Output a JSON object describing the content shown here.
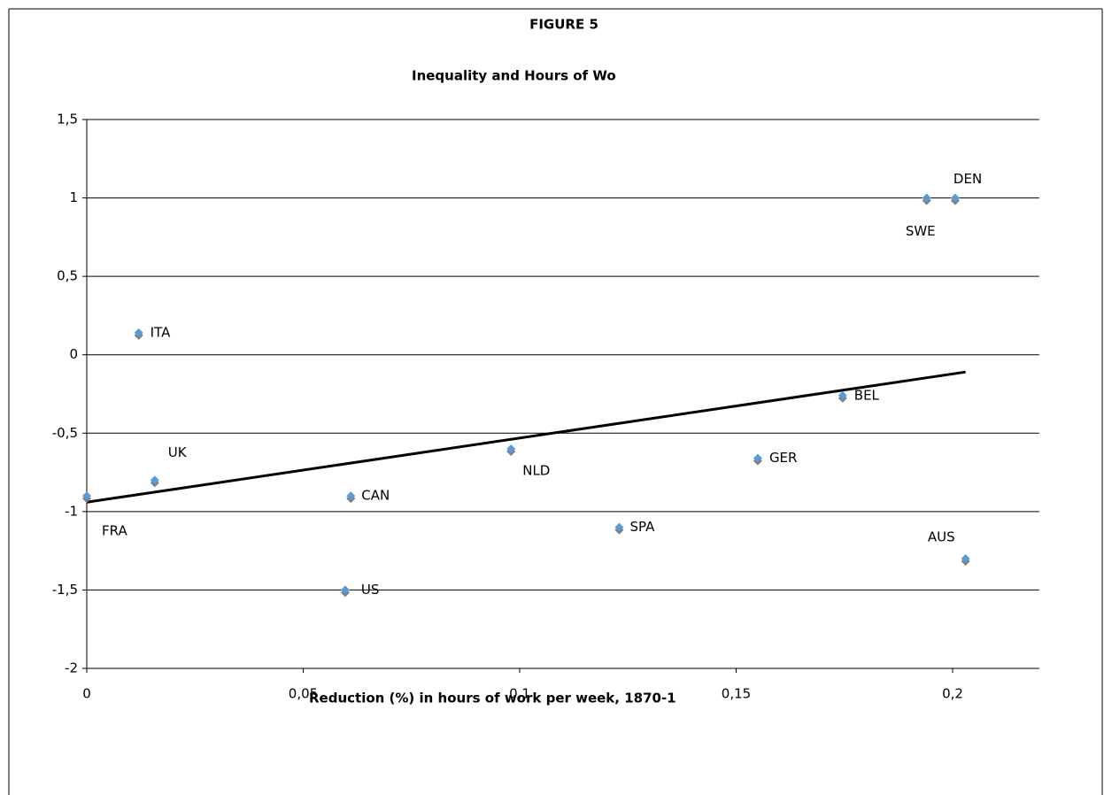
{
  "chart_data": {
    "type": "scatter",
    "supertitle": "FIGURE 5",
    "title": "Inequality and Hours of Wo",
    "x_label": "Reduction (%) in hours of work per week, 1870-1",
    "labels": [
      "FRA",
      "UK",
      "ITA",
      "CAN",
      "US",
      "NLD",
      "SPA",
      "GER",
      "BEL",
      "SWE",
      "DEN",
      "AUS"
    ],
    "x": [
      0,
      0.0157,
      0.012,
      0.061,
      0.0597,
      0.098,
      0.123,
      0.155,
      0.1746,
      0.194,
      0.2006,
      0.203
    ],
    "y": [
      -0.9,
      -0.8,
      0.14,
      -0.9,
      -1.5,
      -0.6,
      -1.1,
      -0.66,
      -0.26,
      1,
      1,
      -1.3
    ],
    "color": "#5b9bd5",
    "trendline": {
      "x": [
        0,
        0.203
      ],
      "y": [
        -0.94,
        -0.11
      ],
      "color": "#000000"
    },
    "xlim": [
      0,
      0.22
    ],
    "xticks": [
      0,
      {
        "value": 0.05,
        "label": "0,05"
      },
      {
        "value": 0.1,
        "label": "0,1"
      },
      {
        "value": 0.15,
        "label": "0,15"
      },
      {
        "value": 0.2,
        "label": "0,2"
      }
    ],
    "ylim": [
      -2,
      1.5
    ],
    "yticks": [
      -2,
      {
        "value": -1.5,
        "label": "-1,5"
      },
      -1,
      {
        "value": -0.5,
        "label": "-0,5"
      },
      0,
      {
        "value": 0.5,
        "label": "0,5"
      },
      1,
      {
        "value": 1.5,
        "label": "1,5"
      }
    ],
    "grid": true
  }
}
